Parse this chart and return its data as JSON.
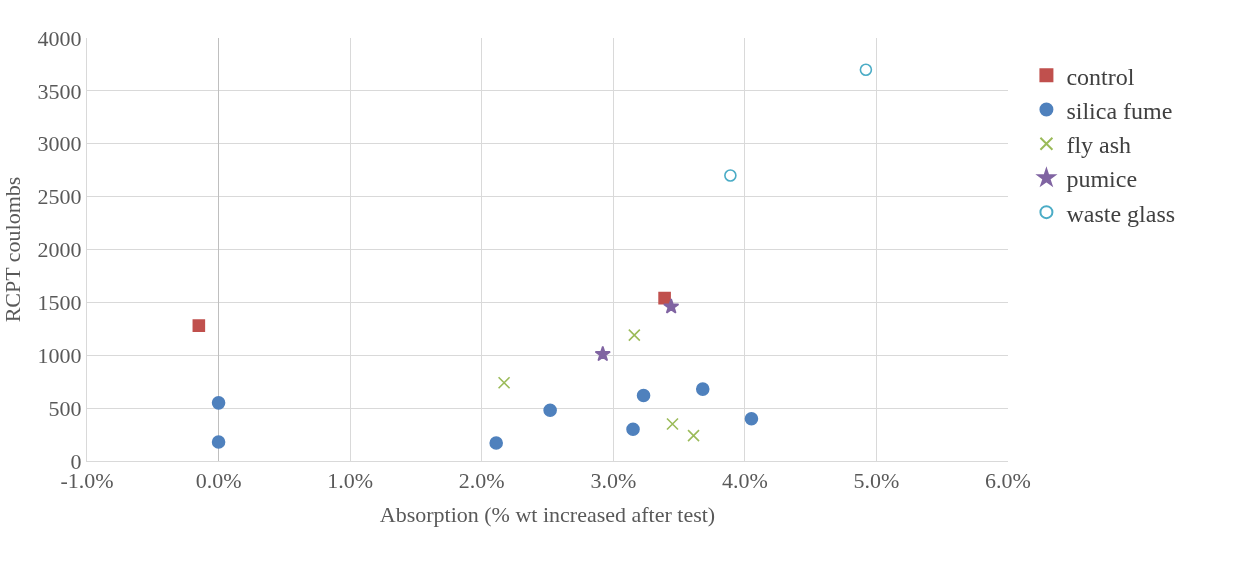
{
  "chart_data": {
    "type": "scatter",
    "xlabel": "Absorption (% wt increased after test)",
    "ylabel": "RCPT coulombs",
    "xlim": [
      -1,
      6
    ],
    "xticks": [
      {
        "value": -1,
        "label": "-1.0%"
      },
      {
        "value": 0,
        "label": "0.0%"
      },
      {
        "value": 1,
        "label": "1.0%"
      },
      {
        "value": 2,
        "label": "2.0%"
      },
      {
        "value": 3,
        "label": "3.0%"
      },
      {
        "value": 4,
        "label": "4.0%"
      },
      {
        "value": 5,
        "label": "5.0%"
      },
      {
        "value": 6,
        "label": "6.0%"
      }
    ],
    "ylim": [
      0,
      4000
    ],
    "yticks": [
      0,
      500,
      1000,
      1500,
      2000,
      2500,
      3000,
      3500,
      4000
    ],
    "grid": true,
    "legend": "right",
    "series": [
      {
        "name": "control",
        "color": "#c0504d",
        "marker": "square",
        "x": [
          -0.15,
          3.39
        ],
        "values": [
          1280,
          1540
        ]
      },
      {
        "name": "silica fume",
        "color": "#4f81bd",
        "marker": "circle",
        "x": [
          0,
          0,
          2.11,
          2.52,
          3.15,
          3.23,
          3.68,
          4.05
        ],
        "values": [
          550,
          180,
          170,
          480,
          300,
          620,
          680,
          400
        ]
      },
      {
        "name": "fly ash",
        "color": "#9bbb59",
        "marker": "cross",
        "x": [
          2.17,
          3.16,
          3.45,
          3.61
        ],
        "values": [
          740,
          1190,
          350,
          240
        ]
      },
      {
        "name": "pumice",
        "color": "#8064a2",
        "marker": "star",
        "x": [
          2.92,
          3.44
        ],
        "values": [
          1010,
          1460
        ]
      },
      {
        "name": "waste glass",
        "color": "#4bacc6",
        "marker": "circle-open",
        "x": [
          3.89,
          4.92
        ],
        "values": [
          2700,
          3700
        ]
      }
    ]
  }
}
